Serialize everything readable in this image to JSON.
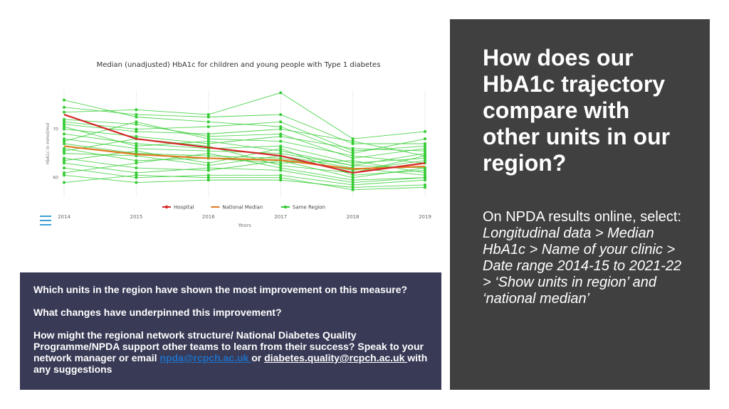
{
  "chart_data": {
    "type": "line",
    "title": "Median (unadjusted) HbA1c for children and young people with Type 1 diabetes",
    "xlabel": "Years",
    "ylabel": "HbA1c in mmol/mol",
    "x": [
      2014,
      2015,
      2016,
      2017,
      2018,
      2019
    ],
    "xlim": [
      2014,
      2019
    ],
    "ylim": [
      56,
      78
    ],
    "yticks": [
      60,
      70
    ],
    "grid": true,
    "legend_position": "bottom",
    "legend": [
      "Hospital",
      "National Median",
      "Same Region"
    ],
    "colors": {
      "hospital": "#d62728",
      "national": "#e07b22",
      "region": "#33cc33"
    },
    "series": [
      {
        "name": "Hospital",
        "values": [
          73.0,
          68.0,
          66.2,
          64.5,
          61.0,
          63.0
        ]
      },
      {
        "name": "National Median",
        "values": [
          66.5,
          64.8,
          64.0,
          63.6,
          61.8,
          62.3
        ]
      }
    ],
    "region_series": [
      [
        76.0,
        72.5,
        71.5,
        70.5,
        65.0,
        68.0
      ],
      [
        73.5,
        74.0,
        73.0,
        77.5,
        68.0,
        69.5
      ],
      [
        72.0,
        71.0,
        68.5,
        69.0,
        64.0,
        66.0
      ],
      [
        71.0,
        69.5,
        69.0,
        70.0,
        67.5,
        64.5
      ],
      [
        70.0,
        68.5,
        67.0,
        68.5,
        66.0,
        65.5
      ],
      [
        69.0,
        67.0,
        66.0,
        66.5,
        63.0,
        64.0
      ],
      [
        68.0,
        66.0,
        65.5,
        65.0,
        62.5,
        62.0
      ],
      [
        67.0,
        65.0,
        64.5,
        64.0,
        61.5,
        63.5
      ],
      [
        66.0,
        63.5,
        64.0,
        63.0,
        63.5,
        61.0
      ],
      [
        65.0,
        64.5,
        62.5,
        64.5,
        62.0,
        60.5
      ],
      [
        64.0,
        62.0,
        61.5,
        63.5,
        60.0,
        62.0
      ],
      [
        63.0,
        61.0,
        62.0,
        61.5,
        59.0,
        60.0
      ],
      [
        62.0,
        60.0,
        60.5,
        60.5,
        58.5,
        59.5
      ],
      [
        60.5,
        59.0,
        59.5,
        59.5,
        58.0,
        58.5
      ],
      [
        59.0,
        60.5,
        60.0,
        60.0,
        57.5,
        58.0
      ],
      [
        74.5,
        73.0,
        72.5,
        73.0,
        67.0,
        67.0
      ],
      [
        71.5,
        70.0,
        70.5,
        71.5,
        65.5,
        66.5
      ],
      [
        67.5,
        71.5,
        68.0,
        67.5,
        64.5,
        63.0
      ],
      [
        65.5,
        68.0,
        66.5,
        62.5,
        61.0,
        64.5
      ],
      [
        63.5,
        65.5,
        63.0,
        66.0,
        60.5,
        61.5
      ],
      [
        61.0,
        63.0,
        65.0,
        62.0,
        59.5,
        60.0
      ],
      [
        70.5,
        66.5,
        67.5,
        65.5,
        62.5,
        65.0
      ]
    ]
  },
  "questions": {
    "q1": "Which units in the region have shown the most improvement on this measure?",
    "q2": "What changes have underpinned this improvement?",
    "q3_text": "How might the regional network structure/ National Diabetes Quality Programme/NPDA support other teams to learn from their success? Speak to your network manager or email ",
    "email1": "npda@rcpch.ac.uk ",
    "or": "or ",
    "email2": "diabetes.quality@rcpch.ac.uk ",
    "q3_end": "with any suggestions"
  },
  "side_panel": {
    "heading": "How does our HbA1c trajectory compare with other units in our region?",
    "instructions_plain": "On NPDA results online, select: ",
    "instructions_italic": "Longitudinal data > Median HbA1c > Name of your clinic > Date range 2014-15 to 2021-22 > ‘Show units in region’ and ‘national median’"
  }
}
